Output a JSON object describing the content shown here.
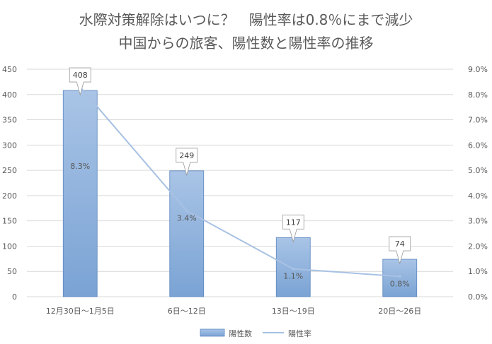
{
  "chart_data": {
    "type": "bar",
    "title": "水際対策解除はいつに？　陽性率は0.8％にまで減少",
    "subtitle": "中国からの旅客、陽性数と陽性率の推移",
    "categories": [
      "12月30日〜1月5日",
      "6日〜12日",
      "13日〜19日",
      "20日〜26日"
    ],
    "series": [
      {
        "name": "陽性数",
        "type": "bar",
        "axis": "left",
        "values": [
          408,
          249,
          117,
          74
        ],
        "labels": [
          "408",
          "249",
          "117",
          "74"
        ]
      },
      {
        "name": "陽性率",
        "type": "line",
        "axis": "right",
        "values": [
          8.3,
          3.4,
          1.1,
          0.8
        ],
        "labels": [
          "8.3%",
          "3.4%",
          "1.1%",
          "0.8%"
        ]
      }
    ],
    "ylim": [
      0,
      450
    ],
    "y_ticks": [
      "0",
      "50",
      "100",
      "150",
      "200",
      "250",
      "300",
      "350",
      "400",
      "450"
    ],
    "y2lim": [
      0,
      9
    ],
    "y2_ticks": [
      "0.0%",
      "1.0%",
      "2.0%",
      "3.0%",
      "4.0%",
      "5.0%",
      "6.0%",
      "7.0%",
      "8.0%",
      "9.0%"
    ],
    "grid": true,
    "legend_position": "bottom",
    "colors": {
      "bar_top": "#a9c4e6",
      "bar_bottom": "#7aa3d4",
      "bar_stroke": "#5b86c0",
      "line": "#a8c1e3",
      "grid": "#d9d9d9",
      "text": "#595959"
    }
  }
}
